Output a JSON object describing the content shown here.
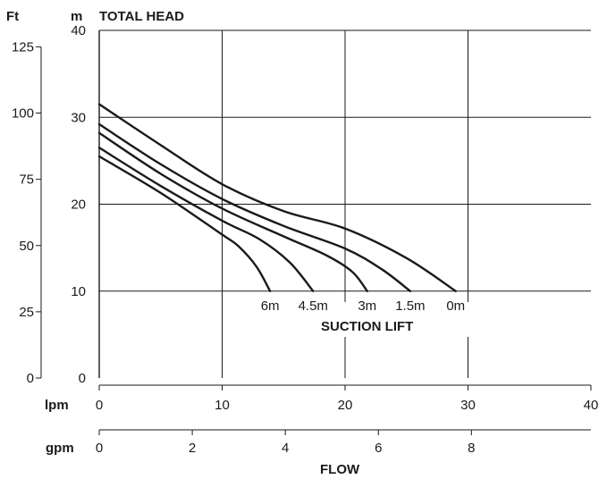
{
  "chart_data": {
    "type": "line",
    "title": "TOTAL HEAD",
    "xlabel": "FLOW",
    "annotation": "SUCTION LIFT",
    "grid": true,
    "axes": {
      "left_ft": {
        "unit_label": "Ft",
        "ticks": [
          "0",
          "25",
          "50",
          "75",
          "100",
          "125"
        ],
        "range": [
          0,
          131.2
        ]
      },
      "left_m": {
        "unit_label": "m",
        "ticks": [
          "0",
          "10",
          "20",
          "30",
          "40"
        ],
        "range": [
          0,
          40
        ]
      },
      "bottom_lpm": {
        "unit_label": "lpm",
        "ticks": [
          "0",
          "10",
          "20",
          "30",
          "40"
        ],
        "range": [
          0,
          40
        ]
      },
      "bottom_gpm": {
        "unit_label": "gpm",
        "ticks": [
          "0",
          "2",
          "4",
          "6",
          "8"
        ]
      }
    },
    "series": [
      {
        "name": "0m",
        "x": [
          0,
          5,
          10,
          15,
          20,
          25,
          29
        ],
        "y": [
          31.5,
          26.8,
          22.3,
          19.2,
          17.2,
          13.8,
          10
        ]
      },
      {
        "name": "1.5m",
        "x": [
          0,
          5,
          10,
          15,
          20,
          23,
          25.3
        ],
        "y": [
          29.2,
          24.6,
          20.6,
          17.5,
          14.9,
          12.5,
          10
        ]
      },
      {
        "name": "3m",
        "x": [
          0,
          5,
          10,
          15,
          18.5,
          20.6,
          21.8
        ],
        "y": [
          28.2,
          23.5,
          19.5,
          16.3,
          14.1,
          12.2,
          10
        ]
      },
      {
        "name": "4.5m",
        "x": [
          0,
          5,
          10,
          13,
          15.5,
          17.4
        ],
        "y": [
          26.5,
          22.1,
          18.1,
          16.0,
          13.3,
          10
        ]
      },
      {
        "name": "6m",
        "x": [
          0,
          5,
          10,
          11.3,
          12.8,
          13.9
        ],
        "y": [
          25.5,
          21.3,
          16.5,
          15.2,
          12.8,
          10
        ]
      }
    ]
  }
}
